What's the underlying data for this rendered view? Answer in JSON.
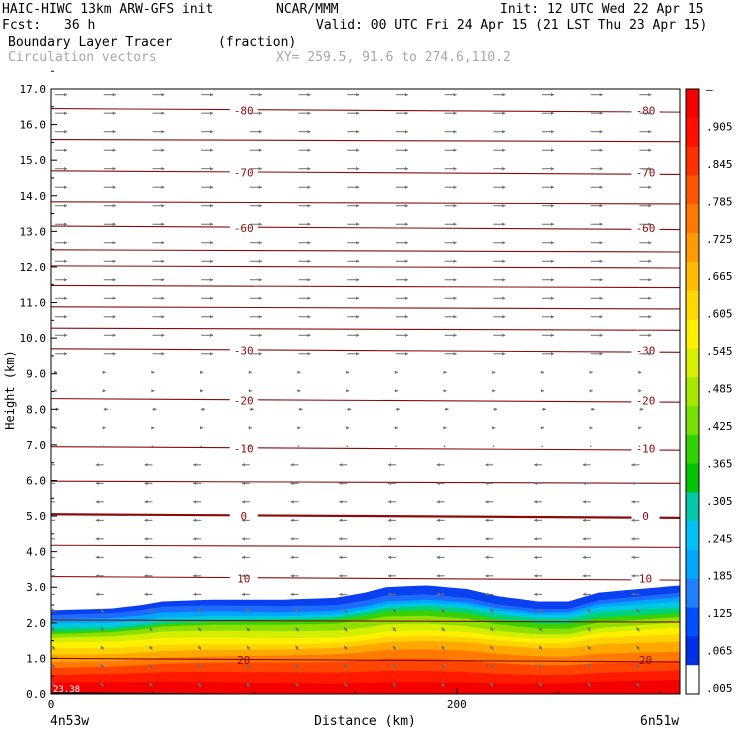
{
  "header": {
    "model": "HAIC-HIWC 13km ARW-GFS init",
    "org": "NCAR/MMM",
    "init": "Init: 12 UTC Wed 22 Apr 15",
    "fcst_label": "Fcst:",
    "fcst_value": "36 h",
    "valid": "Valid: 00 UTC Fri 24 Apr 15 (21 LST Thu 23 Apr 15)",
    "field": "Boundary Layer Tracer",
    "units": "(fraction)",
    "vectors": "Circulation vectors",
    "xy": "XY= 259.5, 91.6 to 274.6,110.2"
  },
  "chart_data": {
    "type": "heatmap",
    "ylabel": "Height (km)",
    "xlabel": "Distance (km)",
    "xlim": [
      0,
      310
    ],
    "ylim": [
      0.0,
      17.0
    ],
    "ytick_labels": [
      "0.0",
      "1.0",
      "2.0",
      "3.0",
      "4.0",
      "5.0",
      "6.0",
      "7.0",
      "8.0",
      "9.0",
      "10.0",
      "11.0",
      "12.0",
      "13.0",
      "14.0",
      "15.0",
      "16.0",
      "17.0"
    ],
    "xtick_labels": [
      "0",
      "200"
    ],
    "x_endpoint_labels": [
      "4n53w",
      "6n51w"
    ],
    "surface_label": "23.38",
    "colorbar": {
      "labels": [
        "–",
        ".905",
        ".845",
        ".785",
        ".725",
        ".665",
        ".605",
        ".545",
        ".485",
        ".425",
        ".365",
        ".305",
        ".245",
        ".185",
        ".125",
        ".065",
        ".005"
      ],
      "colors": [
        "#f50000",
        "#ff1000",
        "#ff3000",
        "#ff5500",
        "#ff7800",
        "#ff9a00",
        "#ffbc00",
        "#ffd800",
        "#ffee00",
        "#d8f000",
        "#a8e800",
        "#78e000",
        "#30d200",
        "#00c400",
        "#00c8a8",
        "#00c0f8",
        "#00a8ff",
        "#2080ff",
        "#0050ff",
        "#0030e8",
        "#ffffff"
      ]
    },
    "isotherms": [
      {
        "label": "-80",
        "y": 16.4,
        "positions": [
          "left",
          "right"
        ]
      },
      {
        "label": "-70",
        "y": 14.65,
        "positions": [
          "left",
          "right"
        ]
      },
      {
        "label": "-60",
        "y": 13.1,
        "positions": [
          "left",
          "right"
        ]
      },
      {
        "label": "-30",
        "y": 9.65,
        "positions": [
          "left",
          "right"
        ]
      },
      {
        "label": "-20",
        "y": 8.25,
        "positions": [
          "left",
          "right"
        ]
      },
      {
        "label": "-10",
        "y": 6.9,
        "positions": [
          "left",
          "right"
        ]
      },
      {
        "label": "0",
        "y": 5.0,
        "positions": [
          "left",
          "right"
        ]
      },
      {
        "label": "10",
        "y": 3.25,
        "positions": [
          "left",
          "right"
        ]
      },
      {
        "label": "20",
        "y": 0.95,
        "positions": [
          "left",
          "right"
        ]
      }
    ],
    "boundary_layer_top_km": [
      [
        0,
        2.35
      ],
      [
        30,
        2.4
      ],
      [
        45,
        2.5
      ],
      [
        55,
        2.6
      ],
      [
        80,
        2.65
      ],
      [
        115,
        2.65
      ],
      [
        140,
        2.7
      ],
      [
        155,
        2.85
      ],
      [
        165,
        3.0
      ],
      [
        185,
        3.05
      ],
      [
        205,
        2.95
      ],
      [
        220,
        2.75
      ],
      [
        240,
        2.6
      ],
      [
        255,
        2.6
      ],
      [
        270,
        2.85
      ],
      [
        290,
        2.95
      ],
      [
        310,
        3.05
      ]
    ]
  }
}
